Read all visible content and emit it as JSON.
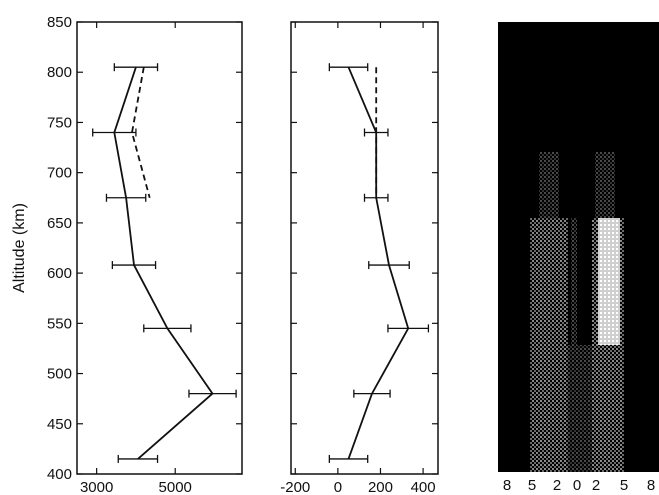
{
  "chart_data": [
    {
      "type": "line",
      "ylabel": "Altitude (km)",
      "xlabel": "",
      "ylim": [
        400,
        850
      ],
      "xlim": [
        2500,
        6700
      ],
      "x_ticks": [
        3000,
        5000
      ],
      "x_tick_labels": [
        "3000",
        "5000"
      ],
      "y_ticks": [
        400,
        450,
        500,
        550,
        600,
        650,
        700,
        750,
        800,
        850
      ],
      "y_tick_labels": [
        "400",
        "450",
        "500",
        "550",
        "600",
        "650",
        "700",
        "750",
        "800",
        "850"
      ],
      "series": [
        {
          "style": "solid",
          "x": [
            4000,
            3450,
            3750,
            3950,
            4800,
            5950,
            4050
          ],
          "y": [
            805,
            740,
            675,
            608,
            545,
            480,
            415
          ],
          "xerr": [
            550,
            550,
            500,
            550,
            600,
            600,
            500
          ]
        },
        {
          "style": "dashed",
          "x": [
            4200,
            3900,
            4350
          ],
          "y": [
            805,
            740,
            675
          ]
        }
      ]
    },
    {
      "type": "line",
      "xlabel": "",
      "ylabel": "",
      "ylim": [
        400,
        850
      ],
      "xlim": [
        -220,
        470
      ],
      "x_ticks": [
        -200,
        0,
        200,
        400
      ],
      "x_tick_labels": [
        "-200",
        "0",
        "200",
        "400"
      ],
      "series": [
        {
          "style": "solid",
          "x": [
            50,
            180,
            180,
            240,
            330,
            160,
            50
          ],
          "y": [
            805,
            740,
            675,
            608,
            545,
            480,
            415
          ],
          "xerr": [
            90,
            55,
            55,
            95,
            95,
            85,
            90
          ]
        },
        {
          "style": "dashed",
          "x": [
            180,
            180,
            180
          ],
          "y": [
            805,
            740,
            675
          ]
        }
      ]
    },
    {
      "type": "heatmap",
      "colorscale": "gray",
      "x_tick_labels": [
        "8",
        "5",
        "2",
        "0",
        "2",
        "5",
        "8"
      ]
    }
  ],
  "colors": {
    "ink": "#111111",
    "background": "#ffffff",
    "panel": "#000000"
  }
}
